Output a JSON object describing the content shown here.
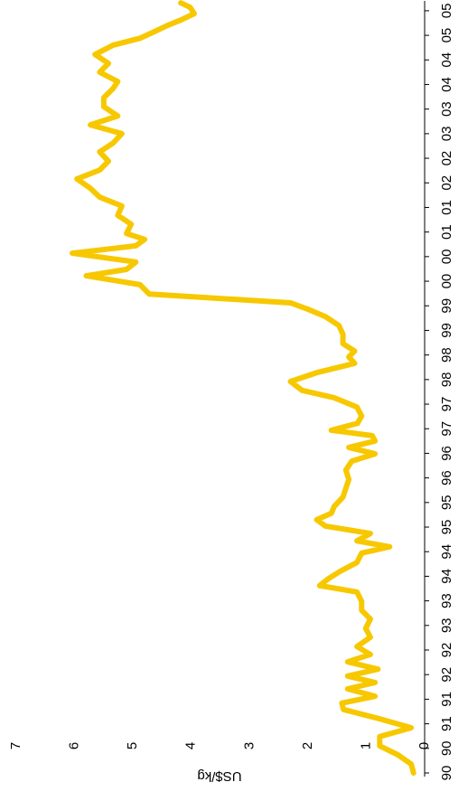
{
  "chart_data": {
    "type": "line",
    "y_label": "US$/kg",
    "x": [
      1990.0,
      1990.18,
      1990.37,
      1990.55,
      1990.74,
      1990.92,
      1991.1,
      1991.29,
      1991.42,
      1991.56,
      1991.71,
      1991.84,
      1991.97,
      1992.11,
      1992.26,
      1992.41,
      1992.57,
      1992.76,
      1992.94,
      1993.13,
      1993.31,
      1993.49,
      1993.68,
      1993.81,
      1993.95,
      1994.1,
      1994.28,
      1994.47,
      1994.6,
      1994.72,
      1994.87,
      1995.02,
      1995.15,
      1995.28,
      1995.42,
      1995.61,
      1995.79,
      1995.97,
      1996.16,
      1996.34,
      1996.49,
      1996.62,
      1996.75,
      1996.86,
      1996.97,
      1997.11,
      1997.26,
      1997.44,
      1997.63,
      1997.78,
      1997.96,
      1998.14,
      1998.33,
      1998.46,
      1998.58,
      1998.73,
      1998.92,
      1999.1,
      1999.28,
      1999.43,
      1999.56,
      1999.74,
      1999.93,
      2000.11,
      2000.24,
      2000.39,
      2000.57,
      2000.72,
      2000.85,
      2000.97,
      2001.16,
      2001.34,
      2001.53,
      2001.71,
      2001.89,
      2002.08,
      2002.26,
      2002.44,
      2002.63,
      2002.81,
      2003.0,
      2003.18,
      2003.36,
      2003.55,
      2003.73,
      2003.92,
      2004.06,
      2004.25,
      2004.43,
      2004.61,
      2004.8,
      2004.94,
      2005.07,
      2005.2,
      2005.31,
      2005.44,
      2005.57,
      2005.66
    ],
    "series": [
      {
        "color": "#f7c800",
        "values": [
          0.19,
          0.23,
          0.46,
          0.77,
          0.77,
          0.23,
          0.77,
          1.39,
          1.42,
          0.85,
          1.32,
          0.85,
          1.32,
          0.8,
          1.32,
          0.93,
          1.16,
          0.93,
          1.01,
          0.93,
          1.08,
          1.08,
          1.16,
          1.8,
          1.65,
          1.45,
          1.16,
          1.08,
          0.6,
          1.16,
          0.93,
          1.7,
          1.85,
          1.6,
          1.55,
          1.4,
          1.35,
          1.3,
          1.35,
          1.25,
          0.85,
          1.3,
          0.85,
          0.9,
          1.6,
          1.15,
          1.08,
          1.16,
          1.55,
          2.1,
          2.3,
          1.85,
          1.2,
          1.3,
          1.2,
          1.4,
          1.4,
          1.47,
          1.7,
          2.0,
          2.3,
          4.72,
          4.88,
          5.8,
          5.11,
          4.95,
          6.04,
          4.95,
          4.8,
          5.11,
          5.03,
          5.26,
          5.19,
          5.57,
          5.73,
          5.96,
          5.57,
          5.42,
          5.57,
          5.34,
          5.19,
          5.73,
          5.26,
          5.5,
          5.5,
          5.34,
          5.26,
          5.57,
          5.42,
          5.65,
          5.34,
          4.88,
          4.64,
          4.41,
          4.18,
          3.95,
          4.02,
          4.18
        ]
      }
    ],
    "xlim": [
      1990,
      2005.7
    ],
    "xticks": [
      {
        "value": 1990,
        "label": "90"
      },
      {
        "value": 1990.5,
        "label": "90"
      },
      {
        "value": 1991,
        "label": "91"
      },
      {
        "value": 1991.5,
        "label": "91"
      },
      {
        "value": 1992,
        "label": "92"
      },
      {
        "value": 1992.5,
        "label": "92"
      },
      {
        "value": 1993,
        "label": "93"
      },
      {
        "value": 1993.5,
        "label": "93"
      },
      {
        "value": 1994,
        "label": "94"
      },
      {
        "value": 1994.5,
        "label": "94"
      },
      {
        "value": 1995,
        "label": "95"
      },
      {
        "value": 1995.5,
        "label": "95"
      },
      {
        "value": 1996,
        "label": "96"
      },
      {
        "value": 1996.5,
        "label": "96"
      },
      {
        "value": 1997,
        "label": "97"
      },
      {
        "value": 1997.5,
        "label": "97"
      },
      {
        "value": 1998,
        "label": "98"
      },
      {
        "value": 1998.5,
        "label": "98"
      },
      {
        "value": 1999,
        "label": "99"
      },
      {
        "value": 1999.5,
        "label": "99"
      },
      {
        "value": 2000,
        "label": "00"
      },
      {
        "value": 2000.5,
        "label": "00"
      },
      {
        "value": 2001,
        "label": "01"
      },
      {
        "value": 2001.5,
        "label": "01"
      },
      {
        "value": 2002,
        "label": "02"
      },
      {
        "value": 2002.5,
        "label": "02"
      },
      {
        "value": 2003,
        "label": "03"
      },
      {
        "value": 2003.5,
        "label": "03"
      },
      {
        "value": 2004,
        "label": "04"
      },
      {
        "value": 2004.5,
        "label": "04"
      },
      {
        "value": 2005,
        "label": "05"
      },
      {
        "value": 2005.5,
        "label": "05"
      }
    ],
    "ylim": [
      0,
      7
    ],
    "yticks": [
      0,
      1,
      2,
      3,
      4,
      5,
      6,
      7
    ],
    "grid": false
  }
}
